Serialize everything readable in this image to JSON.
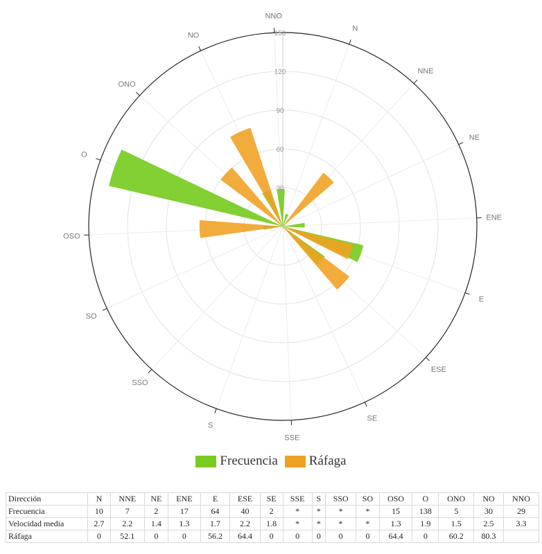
{
  "chart_data": {
    "type": "bar",
    "subtype": "polar-wind-rose",
    "categories": [
      "N",
      "NNE",
      "NE",
      "ENE",
      "E",
      "ESE",
      "SE",
      "SSE",
      "S",
      "SSO",
      "SO",
      "OSO",
      "O",
      "ONO",
      "NO",
      "NNO"
    ],
    "radial_ticks": [
      30,
      60,
      90,
      120,
      150
    ],
    "rmax": 150,
    "series": [
      {
        "name": "Frecuencia",
        "color": "#77cc22",
        "values": [
          10,
          7,
          2,
          17,
          64,
          40,
          2,
          0,
          0,
          0,
          0,
          15,
          138,
          5,
          30,
          29
        ]
      },
      {
        "name": "Ráfaga",
        "color": "#f0a020",
        "values": [
          0,
          52.1,
          0,
          0,
          56.2,
          64.4,
          0,
          0,
          0,
          0,
          0,
          64.4,
          0,
          60.2,
          80.3,
          0
        ]
      }
    ],
    "grid": true
  },
  "legend": {
    "items": [
      {
        "label": "Frecuencia",
        "color": "#77cc22"
      },
      {
        "label": "Ráfaga",
        "color": "#f0a020"
      }
    ]
  },
  "table": {
    "header": [
      "Dirección",
      "N",
      "NNE",
      "NE",
      "ENE",
      "E",
      "ESE",
      "SE",
      "SSE",
      "S",
      "SSO",
      "SO",
      "OSO",
      "O",
      "ONO",
      "NO",
      "NNO"
    ],
    "rows": [
      [
        "Frecuencia",
        "10",
        "7",
        "2",
        "17",
        "64",
        "40",
        "2",
        "*",
        "*",
        "*",
        "*",
        "15",
        "138",
        "5",
        "30",
        "29"
      ],
      [
        "Velocidad media",
        "2.7",
        "2.2",
        "1.4",
        "1.3",
        "1.7",
        "2.2",
        "1.8",
        "*",
        "*",
        "*",
        "*",
        "1.3",
        "1.9",
        "1.5",
        "2.5",
        "3.3"
      ],
      [
        "Ráfaga",
        "0",
        "52.1",
        "0",
        "0",
        "56.2",
        "64.4",
        "0",
        "0",
        "0",
        "0",
        "0",
        "64.4",
        "0",
        "60.2",
        "80.3",
        ""
      ]
    ]
  }
}
